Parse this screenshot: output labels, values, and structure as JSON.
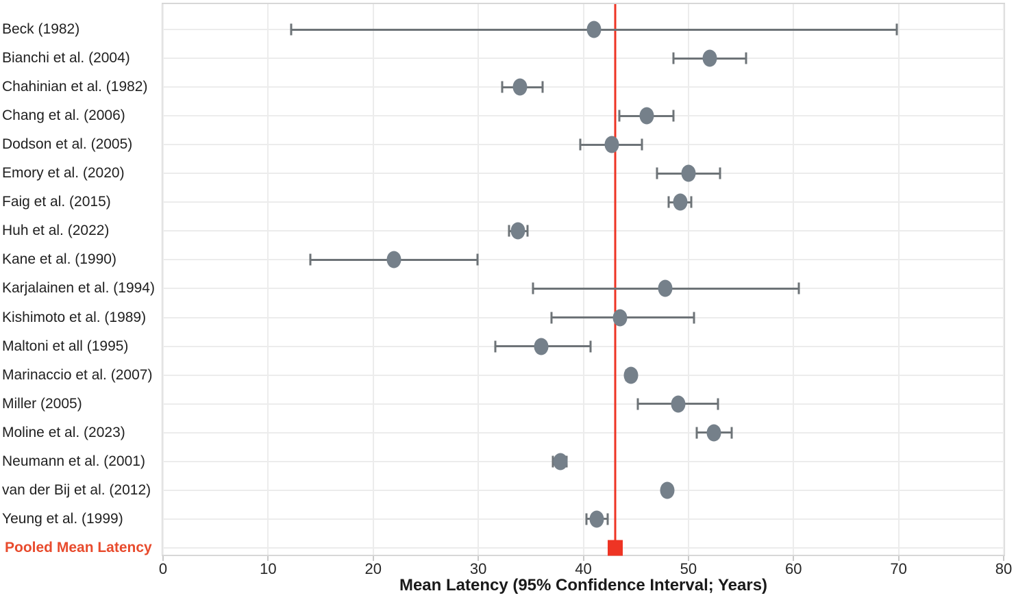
{
  "chart_data": {
    "type": "scatter",
    "variant": "forest-plot",
    "title": "",
    "xlabel": "Mean Latency (95% Confidence Interval; Years)",
    "ylabel": "",
    "xlim": [
      0,
      80
    ],
    "x_ticks": [
      0,
      10,
      20,
      30,
      40,
      50,
      60,
      70,
      80
    ],
    "grid": "on",
    "studies": [
      {
        "label": "Beck (1982)",
        "mean": 41.0,
        "ci_low": 12.2,
        "ci_high": 69.8
      },
      {
        "label": "Bianchi et al. (2004)",
        "mean": 52.0,
        "ci_low": 48.6,
        "ci_high": 55.5
      },
      {
        "label": "Chahinian et al. (1982)",
        "mean": 34.0,
        "ci_low": 32.3,
        "ci_high": 36.1
      },
      {
        "label": "Chang et al. (2006)",
        "mean": 46.0,
        "ci_low": 43.4,
        "ci_high": 48.6
      },
      {
        "label": "Dodson et al. (2005)",
        "mean": 42.7,
        "ci_low": 39.7,
        "ci_high": 45.6
      },
      {
        "label": "Emory et al. (2020)",
        "mean": 50.0,
        "ci_low": 47.0,
        "ci_high": 53.0
      },
      {
        "label": "Faig et al. (2015)",
        "mean": 49.2,
        "ci_low": 48.1,
        "ci_high": 50.3
      },
      {
        "label": "Huh et al. (2022)",
        "mean": 33.8,
        "ci_low": 32.9,
        "ci_high": 34.7
      },
      {
        "label": "Kane et al. (1990)",
        "mean": 22.0,
        "ci_low": 14.0,
        "ci_high": 29.9
      },
      {
        "label": "Karjalainen et al. (1994)",
        "mean": 47.8,
        "ci_low": 35.2,
        "ci_high": 60.5
      },
      {
        "label": "Kishimoto et al. (1989)",
        "mean": 43.5,
        "ci_low": 37.0,
        "ci_high": 50.5
      },
      {
        "label": "Maltoni et all (1995)",
        "mean": 36.0,
        "ci_low": 31.6,
        "ci_high": 40.7
      },
      {
        "label": "Marinaccio et al. (2007)",
        "mean": 44.5,
        "ci_low": 44.1,
        "ci_high": 44.9
      },
      {
        "label": "Miller (2005)",
        "mean": 49.0,
        "ci_low": 45.2,
        "ci_high": 52.8
      },
      {
        "label": "Moline et al. (2023)",
        "mean": 52.4,
        "ci_low": 50.8,
        "ci_high": 54.1
      },
      {
        "label": "Neumann et al. (2001)",
        "mean": 37.8,
        "ci_low": 37.1,
        "ci_high": 38.4
      },
      {
        "label": "van der Bij et al. (2012)",
        "mean": 48.0,
        "ci_low": 47.6,
        "ci_high": 48.4
      },
      {
        "label": "Yeung et al. (1999)",
        "mean": 41.3,
        "ci_low": 40.3,
        "ci_high": 42.3
      }
    ],
    "pooled": {
      "label": "Pooled Mean Latency",
      "mean": 43.0
    },
    "colors": {
      "marker": "#75808a",
      "error_bar": "#6d7377",
      "pooled_line": "#ee3424",
      "pooled_marker": "#ee3424",
      "pooled_label_text": "#e84b2d",
      "grid": "#ececec",
      "border": "#d7d7d7"
    }
  }
}
